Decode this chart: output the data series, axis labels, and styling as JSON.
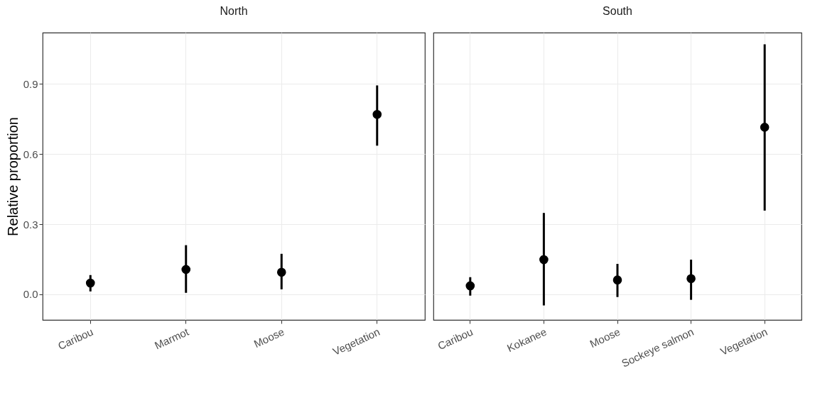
{
  "chart_data": [
    {
      "type": "scatter",
      "title": "North",
      "ylabel": "Relative proportion",
      "categories": [
        "Caribou",
        "Marmot",
        "Moose",
        "Vegetation"
      ],
      "series": [
        {
          "color": "#000000",
          "values": [
            0.048,
            0.106,
            0.094,
            0.77
          ],
          "errors": [
            [
              0.012,
              0.082
            ],
            [
              0.006,
              0.21
            ],
            [
              0.021,
              0.173
            ],
            [
              0.636,
              0.894
            ]
          ]
        }
      ],
      "ylim": [
        -0.11,
        1.12
      ],
      "yticks": [
        {
          "value": 0,
          "label": "0.0"
        },
        0.3,
        0.6,
        0.9
      ],
      "grid": true,
      "marker": "circle"
    },
    {
      "type": "scatter",
      "title": "South",
      "categories": [
        "Caribou",
        "Kokanee",
        "Moose",
        "Sockeye salmon",
        "Vegetation"
      ],
      "series": [
        {
          "color": "#000000",
          "values": [
            0.036,
            0.148,
            0.061,
            0.067,
            0.715
          ],
          "errors": [
            [
              -0.006,
              0.073
            ],
            [
              -0.048,
              0.348
            ],
            [
              -0.012,
              0.13
            ],
            [
              -0.024,
              0.148
            ],
            [
              0.358,
              1.07
            ]
          ]
        }
      ],
      "ylim": [
        -0.11,
        1.12
      ],
      "yticks": [
        0,
        0.3,
        0.6,
        0.9
      ],
      "grid": true,
      "marker": "circle",
      "tick_labels": "x"
    }
  ]
}
